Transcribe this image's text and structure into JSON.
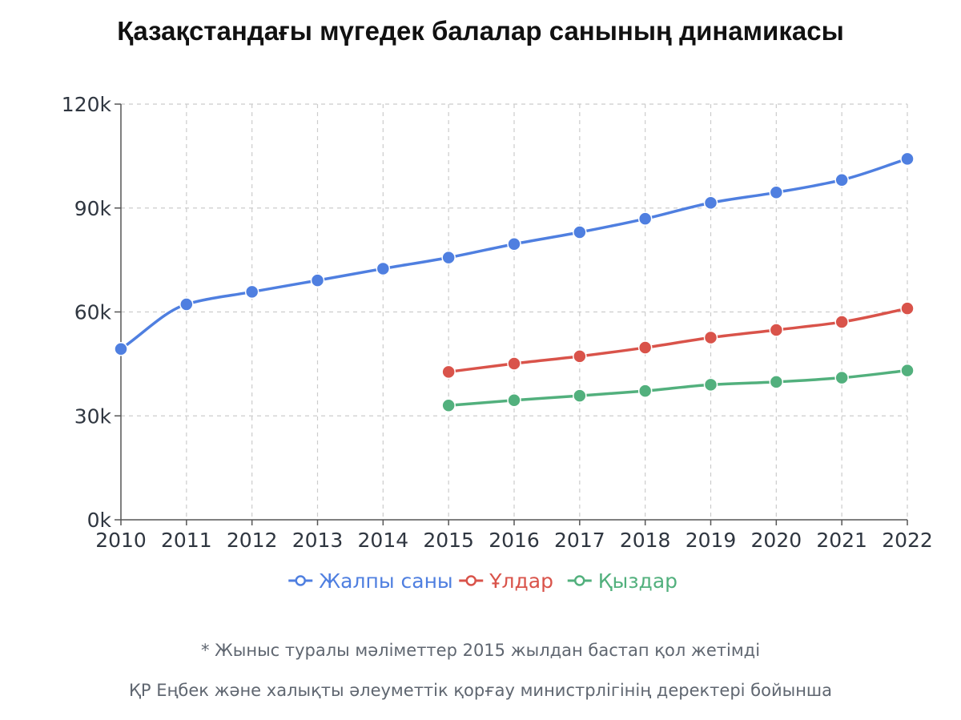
{
  "title": "Қазақстандағы мүгедек балалар санының динамикасы",
  "footnote": "* Жыныс туралы мәліметтер 2015 жылдан бастап қол жетімді",
  "source": "ҚР Еңбек және халықты әлеуметтік қорғау министрлігінің деректері бойынша",
  "chart_data": {
    "type": "line",
    "title": "Қазақстандағы мүгедек балалар санының динамикасы",
    "x": [
      2010,
      2011,
      2012,
      2013,
      2014,
      2015,
      2016,
      2017,
      2018,
      2019,
      2020,
      2021,
      2022
    ],
    "x_tick_labels": [
      "2010",
      "2011",
      "2012",
      "2013",
      "2014",
      "2015",
      "2016",
      "2017",
      "2018",
      "2019",
      "2020",
      "2021",
      "2022"
    ],
    "y_ticks": [
      0,
      30000,
      60000,
      90000,
      120000
    ],
    "y_tick_labels": [
      "0k",
      "30k",
      "60k",
      "90k",
      "120k"
    ],
    "ylim": [
      0,
      120000
    ],
    "grid": true,
    "legend_position": "bottom",
    "series": [
      {
        "name": "Жалпы саны",
        "color": "#4f7fe0",
        "values": [
          49300,
          62200,
          65800,
          69100,
          72500,
          75700,
          79600,
          83000,
          86900,
          91500,
          94500,
          98100,
          104200
        ]
      },
      {
        "name": "Ұлдар",
        "color": "#d9534a",
        "values": [
          null,
          null,
          null,
          null,
          null,
          42700,
          45100,
          47200,
          49700,
          52600,
          54800,
          57100,
          61000
        ]
      },
      {
        "name": "Қыздар",
        "color": "#52b07d",
        "values": [
          null,
          null,
          null,
          null,
          null,
          33000,
          34500,
          35800,
          37200,
          39000,
          39800,
          41000,
          43100
        ]
      }
    ]
  }
}
